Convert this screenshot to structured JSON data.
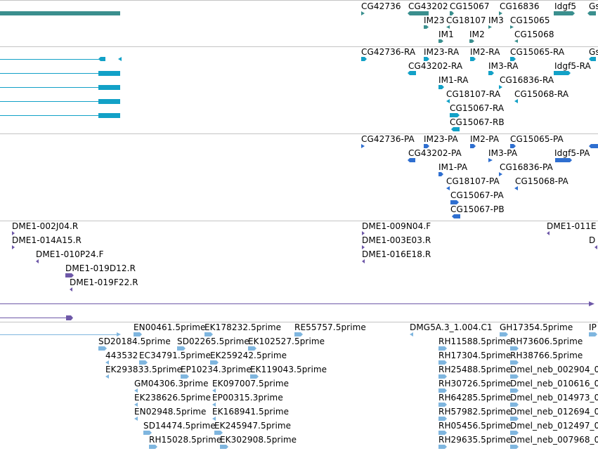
{
  "colors": {
    "gene": "#3a8f8e",
    "transcript": "#12a1c7",
    "protein": "#2f6fd0",
    "est_clone": "#6e58a8",
    "est": "#7fb6df"
  },
  "tracks": {
    "genes": {
      "labels": [
        "CG42736",
        "CG43202",
        "CG15067",
        "CG16836",
        "Idgf5",
        "Gs",
        "IM23",
        "CG18107",
        "IM3",
        "CG15065",
        "IM1",
        "IM2",
        "CG15068"
      ]
    },
    "transcripts": {
      "labels": [
        "CG42736-RA",
        "IM23-RA",
        "IM2-RA",
        "CG15065-RA",
        "Gs",
        "CG43202-RA",
        "IM3-RA",
        "Idgf5-RA",
        "IM1-RA",
        "CG16836-RA",
        "CG18107-RA",
        "CG15068-RA",
        "CG15067-RA",
        "CG15067-RB"
      ]
    },
    "proteins": {
      "labels": [
        "CG42736-PA",
        "IM23-PA",
        "IM2-PA",
        "CG15065-PA",
        "CG43202-PA",
        "IM3-PA",
        "Idgf5-PA",
        "IM1-PA",
        "CG16836-PA",
        "CG18107-PA",
        "CG15068-PA",
        "CG15067-PA",
        "CG15067-PB"
      ]
    },
    "clones": {
      "labels": [
        "DME1-002J04.R",
        "DME1-014A15.R",
        "DME1-010P24.F",
        "DME1-019D12.R",
        "DME1-019F22.R",
        "DME1-009N04.F",
        "DME1-003E03.R",
        "DME1-016E18.R",
        "DME1-011E",
        "D"
      ]
    },
    "ests": {
      "labels": [
        "EN00461.5prime",
        "EK178232.5prime",
        "RE55757.5prime",
        "DMG5A.3_1.004.C1",
        "GH17354.5prime",
        "IP",
        "SD20184.5prime",
        "SD02265.5prime",
        "EK102527.5prime",
        "RH11588.5prime",
        "RH73606.5prime",
        "443532",
        "EC34791.5prime",
        "EK259242.5prime",
        "RH17304.5prime",
        "RH38766.5prime",
        "EK293833.5prime",
        "EP10234.3prime",
        "EK119043.5prime",
        "RH25488.5prime",
        "Dmel_neb_002904_0",
        "GM04306.3prime",
        "EK097007.5prime",
        "RH30726.5prime",
        "Dmel_neb_010616_0",
        "EK238626.5prime",
        "EP00315.3prime",
        "RH64285.5prime",
        "Dmel_neb_014973_0",
        "EN02948.5prime",
        "EK168941.5prime",
        "RH57982.5prime",
        "Dmel_neb_012694_0",
        "SD14474.5prime",
        "EK245947.5prime",
        "RH05456.5prime",
        "Dmel_neb_012497_0",
        "RH15028.5prime",
        "EK302908.5prime",
        "RH29635.5prime",
        "Dmel_neb_007968_0"
      ]
    }
  }
}
